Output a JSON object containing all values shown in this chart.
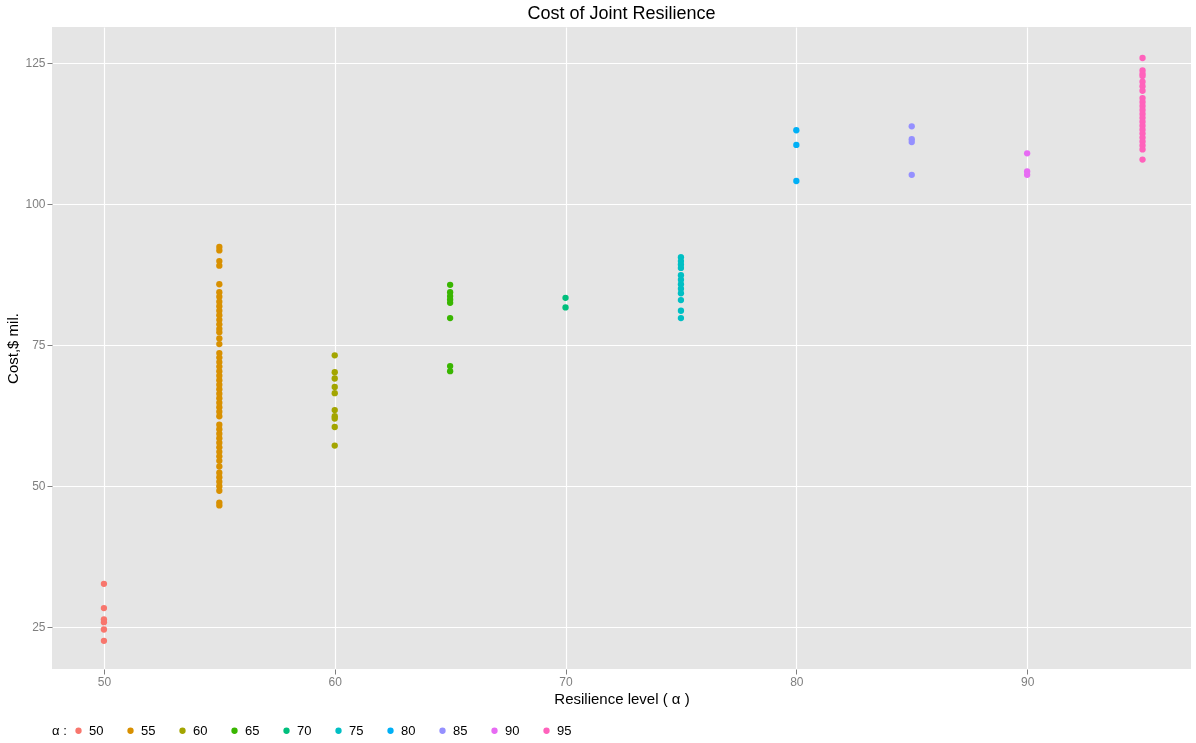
{
  "chart_data": {
    "type": "scatter",
    "title": "Cost of Joint Resilience",
    "xlabel": "Resilience level ( α )",
    "ylabel": "Cost,$ mil.",
    "legend_title": "α :",
    "legend": "bottom",
    "grid": true,
    "marker": "circle",
    "xlim": [
      47.75,
      97.1
    ],
    "ylim": [
      17.5,
      131.3
    ],
    "xticks": [
      50,
      60,
      70,
      80,
      90
    ],
    "yticks": [
      25,
      50,
      75,
      100,
      125
    ],
    "series": [
      {
        "name": "50",
        "color": "#F8766D",
        "x": [
          50,
          50,
          50,
          50,
          50,
          50
        ],
        "values": [
          32.6,
          28.3,
          26.3,
          25.8,
          24.5,
          22.5
        ]
      },
      {
        "name": "55",
        "color": "#D89000",
        "x": [
          55,
          55,
          55,
          55,
          55,
          55,
          55,
          55,
          55,
          55,
          55,
          55,
          55,
          55,
          55,
          55,
          55,
          55,
          55,
          55,
          55,
          55,
          55,
          55,
          55,
          55,
          55,
          55,
          55,
          55,
          55,
          55,
          55,
          55,
          55,
          55,
          55,
          55,
          55,
          55,
          55,
          55,
          55,
          55,
          55,
          55,
          55,
          55,
          55
        ],
        "values": [
          92.3,
          91.7,
          89.8,
          89.0,
          85.7,
          84.3,
          83.5,
          82.6,
          81.8,
          81.0,
          80.2,
          79.4,
          78.6,
          77.8,
          77.2,
          76.1,
          75.1,
          73.5,
          72.7,
          71.9,
          71.1,
          70.3,
          69.5,
          68.7,
          67.9,
          67.1,
          66.3,
          65.5,
          64.7,
          63.9,
          63.1,
          62.3,
          60.8,
          60.0,
          59.2,
          58.4,
          57.6,
          56.8,
          56.0,
          55.2,
          54.4,
          53.4,
          52.3,
          51.5,
          50.7,
          49.9,
          49.1,
          47.0,
          46.5
        ]
      },
      {
        "name": "60",
        "color": "#A3A500",
        "x": [
          60,
          60,
          60,
          60,
          60,
          60,
          60,
          60,
          60,
          60
        ],
        "values": [
          73.1,
          70.1,
          69.0,
          67.5,
          66.4,
          63.4,
          62.3,
          61.9,
          60.4,
          57.1
        ]
      },
      {
        "name": "65",
        "color": "#39B600",
        "x": [
          65,
          65,
          65,
          65,
          65,
          65,
          65,
          65
        ],
        "values": [
          85.6,
          84.3,
          83.6,
          83.0,
          82.4,
          79.7,
          71.2,
          70.3
        ]
      },
      {
        "name": "70",
        "color": "#00BF7D",
        "x": [
          70,
          70
        ],
        "values": [
          83.3,
          81.6
        ]
      },
      {
        "name": "75",
        "color": "#00BFC4",
        "x": [
          75,
          75,
          75,
          75,
          75,
          75,
          75,
          75,
          75,
          75,
          75,
          75
        ],
        "values": [
          90.5,
          89.8,
          89.2,
          88.6,
          87.3,
          86.5,
          85.7,
          84.9,
          84.1,
          82.9,
          81.0,
          79.7
        ]
      },
      {
        "name": "80",
        "color": "#00B0F6",
        "x": [
          80,
          80,
          80
        ],
        "values": [
          113.0,
          110.4,
          104.0
        ]
      },
      {
        "name": "85",
        "color": "#9590FF",
        "x": [
          85,
          85,
          85,
          85
        ],
        "values": [
          113.7,
          111.4,
          110.9,
          105.1
        ]
      },
      {
        "name": "90",
        "color": "#E76BF3",
        "x": [
          90,
          90,
          90
        ],
        "values": [
          108.9,
          105.7,
          105.1
        ]
      },
      {
        "name": "95",
        "color": "#FF62BC",
        "x": [
          95,
          95,
          95,
          95,
          95,
          95,
          95,
          95,
          95,
          95,
          95,
          95,
          95,
          95,
          95,
          95,
          95,
          95,
          95,
          95,
          95,
          95
        ],
        "values": [
          125.8,
          123.6,
          123.0,
          122.6,
          121.6,
          120.8,
          120.0,
          118.7,
          118.0,
          117.3,
          116.6,
          115.9,
          115.2,
          114.5,
          113.8,
          113.1,
          112.4,
          111.7,
          111.0,
          110.3,
          109.6,
          107.8
        ]
      }
    ]
  }
}
